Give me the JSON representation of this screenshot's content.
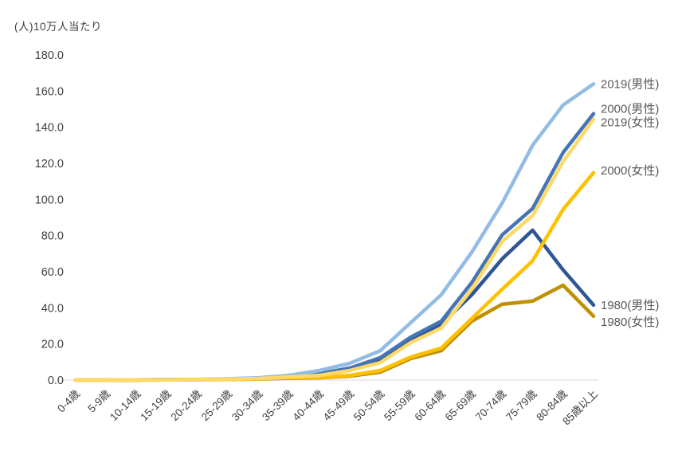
{
  "page": {
    "background": "#FFFFFF"
  },
  "chart_data": {
    "type": "line",
    "title": "(人)10万人当たり",
    "categories": [
      "0-4歳",
      "5-9歳",
      "10-14歳",
      "15-19歳",
      "20-24歳",
      "25-29歳",
      "30-34歳",
      "35-39歳",
      "40-44歳",
      "45-49歳",
      "50-54歳",
      "55-59歳",
      "60-64歳",
      "65-69歳",
      "70-74歳",
      "75-79歳",
      "80-84歳",
      "85歳以上"
    ],
    "xlabel": "",
    "ylabel": "(人)10万人当たり",
    "ylim": [
      0,
      180
    ],
    "ytick_step": 20,
    "ytick_labels": [
      "0.0",
      "20.0",
      "40.0",
      "60.0",
      "80.0",
      "100.0",
      "120.0",
      "140.0",
      "160.0",
      "180.0"
    ],
    "grid": "baseline-only",
    "legend_position": "line-end-labels-right",
    "axis_text_color": "#3f3f3f",
    "label_text_color": "#595959",
    "gridline_color": "#d9d9d9",
    "series": [
      {
        "name": "2019(男性)",
        "color": "#92BCE4",
        "label_dy": 0,
        "values": [
          0.0,
          0.0,
          0.1,
          0.2,
          0.4,
          0.7,
          1.3,
          2.6,
          5.3,
          9.3,
          16.3,
          31.8,
          47.2,
          70.7,
          98.0,
          130.0,
          152.3,
          164.0
        ]
      },
      {
        "name": "2000(男性)",
        "color": "#4575B4",
        "label_dy": -6,
        "values": [
          0.0,
          0.0,
          0.1,
          0.2,
          0.3,
          0.5,
          1.0,
          1.8,
          3.5,
          6.6,
          12.4,
          23.8,
          32.6,
          53.9,
          80.4,
          95.0,
          126.0,
          147.5
        ]
      },
      {
        "name": "2019(女性)",
        "color": "#FFD966",
        "label_dy": 4,
        "values": [
          0.0,
          0.0,
          0.1,
          0.1,
          0.3,
          0.5,
          0.9,
          1.7,
          2.6,
          5.3,
          9.7,
          20.8,
          28.8,
          50.3,
          76.8,
          91.0,
          121.0,
          144.4
        ]
      },
      {
        "name": "2000(女性)",
        "color": "#FFC000",
        "label_dy": -3,
        "values": [
          0.0,
          0.0,
          0.0,
          0.1,
          0.2,
          0.4,
          0.8,
          1.3,
          1.5,
          2.6,
          5.3,
          12.8,
          17.7,
          34.0,
          50.3,
          66.0,
          94.5,
          114.8
        ]
      },
      {
        "name": "1980(男性)",
        "color": "#2F5597",
        "label_dy": 0,
        "values": [
          0.0,
          0.0,
          0.1,
          0.2,
          0.3,
          0.5,
          0.9,
          1.6,
          3.5,
          6.6,
          11.0,
          22.1,
          30.9,
          47.2,
          67.1,
          83.0,
          61.0,
          41.5
        ]
      },
      {
        "name": "1980(女性)",
        "color": "#BF9000",
        "label_dy": 7,
        "values": [
          0.0,
          0.0,
          0.0,
          0.1,
          0.2,
          0.3,
          0.6,
          1.0,
          1.3,
          2.2,
          4.4,
          11.9,
          16.3,
          32.6,
          42.0,
          43.7,
          52.5,
          35.4
        ]
      }
    ],
    "draw_order": [
      4,
      1,
      0,
      5,
      3,
      2
    ]
  }
}
